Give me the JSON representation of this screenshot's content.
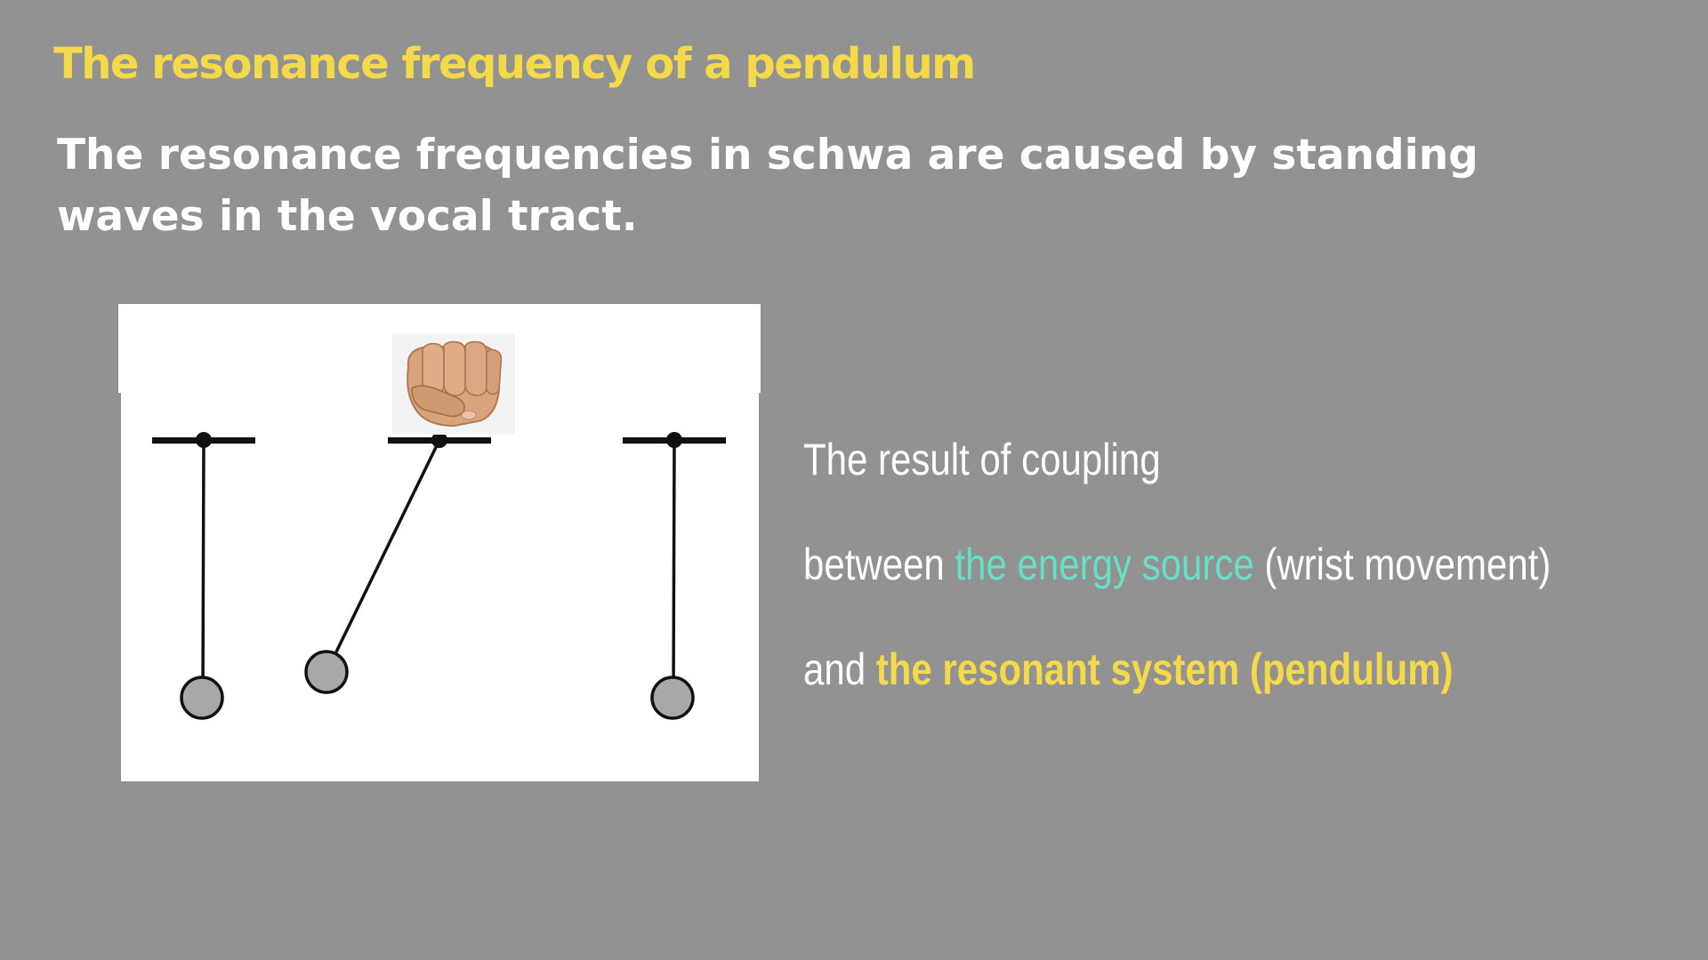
{
  "title": "The resonance frequency of a pendulum",
  "subtitle": "The resonance frequencies in schwa are caused by standing waves in the vocal tract.",
  "caption": {
    "line1": "The result of coupling",
    "line2_prefix": "between ",
    "line2_source": "the energy source",
    "line2_suffix": " (wrist movement)",
    "line3_prefix": "and ",
    "line3_system": "the resonant system (pendulum)"
  },
  "colors": {
    "background": "#929292",
    "title": "#f4d94a",
    "energy_source": "#66e0c6",
    "resonant_system": "#f4d94a",
    "bob_fill": "#a8a8a8"
  },
  "figure": {
    "pendulums": [
      {
        "state": "rest"
      },
      {
        "state": "displaced"
      },
      {
        "state": "rest"
      }
    ],
    "energy_source_icon": "fist-icon"
  }
}
